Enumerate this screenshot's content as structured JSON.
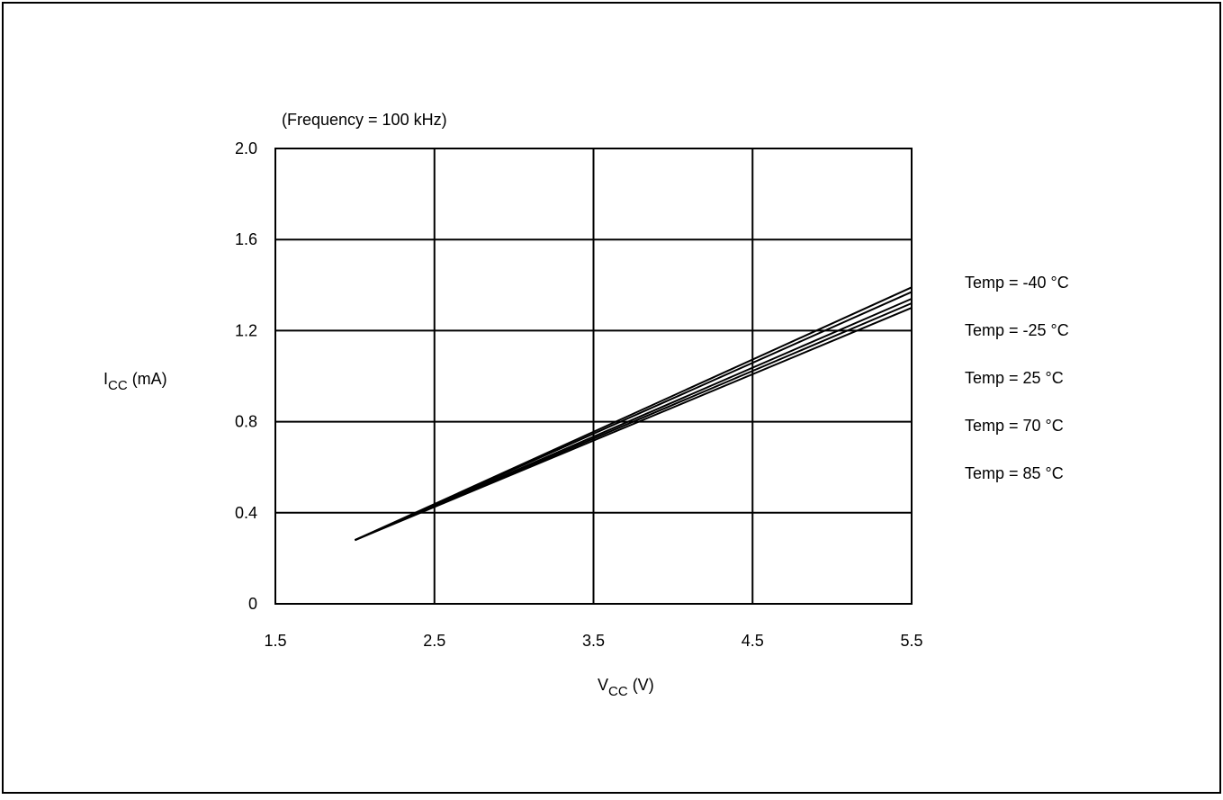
{
  "chart_data": {
    "type": "line",
    "title": "(Frequency = 100 kHz)",
    "xlabel": {
      "main": "V",
      "sub": "CC",
      "unit": " (V)"
    },
    "ylabel": {
      "main": "I",
      "sub": "CC",
      "unit": " (mA)"
    },
    "xlim": [
      1.5,
      5.5
    ],
    "ylim": [
      0,
      2.0
    ],
    "x_ticks": [
      1.5,
      2.5,
      3.5,
      4.5,
      5.5
    ],
    "x_tick_labels": [
      "1.5",
      "2.5",
      "3.5",
      "4.5",
      "5.5"
    ],
    "y_ticks": [
      0,
      0.4,
      0.8,
      1.2,
      1.6,
      2.0
    ],
    "y_tick_labels": [
      "0",
      "0.4",
      "0.8",
      "1.2",
      "1.6",
      "2.0"
    ],
    "grid": true,
    "legend_position": "right",
    "series": [
      {
        "name": "Temp = -40 °C",
        "x": [
          2.0,
          5.5
        ],
        "y": [
          0.28,
          1.39
        ]
      },
      {
        "name": "Temp = -25 °C",
        "x": [
          2.0,
          5.5
        ],
        "y": [
          0.28,
          1.37
        ]
      },
      {
        "name": "Temp = 25 °C",
        "x": [
          2.0,
          5.5
        ],
        "y": [
          0.28,
          1.34
        ]
      },
      {
        "name": "Temp = 70 °C",
        "x": [
          2.0,
          5.5
        ],
        "y": [
          0.28,
          1.32
        ]
      },
      {
        "name": "Temp = 85 °C",
        "x": [
          2.0,
          5.5
        ],
        "y": [
          0.28,
          1.3
        ]
      }
    ]
  }
}
